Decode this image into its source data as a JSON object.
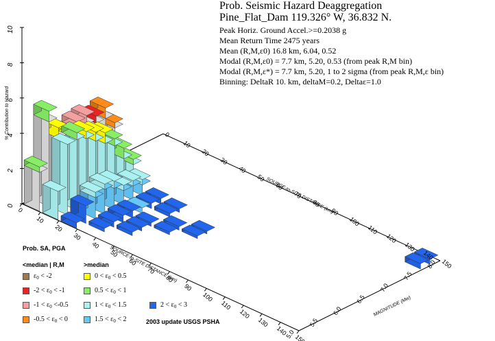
{
  "header": {
    "title": "Prob. Seismic Hazard Deaggregation",
    "site": "Pine_Flat_Dam  119.326° W, 36.832 N.",
    "lines": [
      "Peak Horiz. Ground Accel.>=0.2038  g",
      "Mean Return Time 2475 years",
      "Mean (R,M,ε0)  16.8 km, 6.04,  0.52",
      "Modal (R,M,ε0) =   7.7 km, 5.20,  0.53 (from peak R,M bin)",
      "Modal (R,M,ε*) =  7.7 km, 5.20, 1 to 2 sigma  (from peak R,M,ε bin)",
      "Binning: DeltaR 10. km, deltaM=0.2, Deltaε=1.0"
    ]
  },
  "legend": {
    "title": "Prob. SA, PGA",
    "col1_header": "<median | R,M",
    "col2_header": ">median",
    "items": [
      {
        "label": "ε0 < -2",
        "color": "#a07850"
      },
      {
        "label": "-2 < ε0 < -1",
        "color": "#ee2222"
      },
      {
        "label": "-1 < ε0 <-0.5",
        "color": "#f4a0a0"
      },
      {
        "label": "-0.5 < ε0 < 0",
        "color": "#ff8c1a"
      },
      {
        "label": "0 < ε0 < 0.5",
        "color": "#ffff00"
      },
      {
        "label": "0.5 < ε0 < 1",
        "color": "#88ee66"
      },
      {
        "label": "1 < ε0 < 1.5",
        "color": "#aaf2f2"
      },
      {
        "label": "1.5 < ε0 < 2",
        "color": "#66c8f8"
      },
      {
        "label": "2 < ε0 < 3",
        "color": "#2266ee"
      }
    ],
    "update_note": "2003 update USGS PSHA"
  },
  "chart_data": {
    "type": "bar3d",
    "zlabel": "% Contribution to Hazard",
    "zlim": [
      0,
      10
    ],
    "z_ticks": [
      "0",
      "2",
      "4",
      "6",
      "8",
      "10"
    ],
    "xlabel_front": "SOURCE-to-SITE DISTANCE (km)",
    "xlabel_back": "SOURCE-to-SITE DISTANCE (km)",
    "x_ticks": [
      "0",
      "10",
      "20",
      "30",
      "40",
      "50",
      "60",
      "70",
      "80",
      "90",
      "100",
      "110",
      "120",
      "130",
      "140",
      "150"
    ],
    "ylabel": "MAGNITUDE (Mw)",
    "y_ticks": [
      "5.0",
      "5.5",
      "6.0",
      "6.5",
      "7.0",
      "7.5",
      "8.0"
    ],
    "colors": {
      "e_neg2": "#a07850",
      "e_neg1": "#ee2222",
      "e_neg05": "#f4a0a0",
      "e_neg0": "#ff8c1a",
      "e_05": "#ffff00",
      "e_1": "#88ee66",
      "e_15": "#aaf2f2",
      "e_2": "#66c8f8",
      "e_3": "#2266ee",
      "base": "#dddddd"
    },
    "bars": [
      {
        "r": 5,
        "m": 5.1,
        "stack": [
          {
            "c": "base",
            "v": 2.2
          },
          {
            "c": "e_1",
            "v": 0.3
          }
        ]
      },
      {
        "r": 5,
        "m": 5.3,
        "stack": [
          {
            "c": "base",
            "v": 4.8
          },
          {
            "c": "e_1",
            "v": 0.6
          }
        ]
      },
      {
        "r": 5,
        "m": 5.5,
        "stack": [
          {
            "c": "base",
            "v": 3.6
          },
          {
            "c": "e_05",
            "v": 0.6
          }
        ]
      },
      {
        "r": 5,
        "m": 5.7,
        "stack": [
          {
            "c": "base",
            "v": 3.2
          },
          {
            "c": "e_05",
            "v": 0.5
          }
        ]
      },
      {
        "r": 5,
        "m": 5.9,
        "stack": [
          {
            "c": "base",
            "v": 3.6
          },
          {
            "c": "e_neg05",
            "v": 0.4
          }
        ]
      },
      {
        "r": 5,
        "m": 6.1,
        "stack": [
          {
            "c": "base",
            "v": 3.6
          },
          {
            "c": "e_neg05",
            "v": 0.5
          }
        ]
      },
      {
        "r": 5,
        "m": 6.3,
        "stack": [
          {
            "c": "base",
            "v": 3.4
          },
          {
            "c": "e_neg1",
            "v": 0.4
          }
        ]
      },
      {
        "r": 5,
        "m": 6.5,
        "stack": [
          {
            "c": "base",
            "v": 3.4
          },
          {
            "c": "e_neg0",
            "v": 0.6
          }
        ]
      },
      {
        "r": 5,
        "m": 6.7,
        "stack": [
          {
            "c": "base",
            "v": 2.6
          },
          {
            "c": "e_neg0",
            "v": 0.3
          }
        ]
      },
      {
        "r": 15,
        "m": 5.1,
        "stack": [
          {
            "c": "e_15",
            "v": 1.6
          }
        ]
      },
      {
        "r": 15,
        "m": 5.3,
        "stack": [
          {
            "c": "e_15",
            "v": 4.0
          }
        ]
      },
      {
        "r": 15,
        "m": 5.5,
        "stack": [
          {
            "c": "e_15",
            "v": 4.0
          },
          {
            "c": "e_1",
            "v": 0.4
          }
        ]
      },
      {
        "r": 15,
        "m": 5.7,
        "stack": [
          {
            "c": "e_15",
            "v": 3.8
          },
          {
            "c": "e_05",
            "v": 0.4
          }
        ]
      },
      {
        "r": 15,
        "m": 5.9,
        "stack": [
          {
            "c": "e_15",
            "v": 3.4
          },
          {
            "c": "e_05",
            "v": 0.5
          }
        ]
      },
      {
        "r": 15,
        "m": 6.1,
        "stack": [
          {
            "c": "e_15",
            "v": 3.0
          },
          {
            "c": "e_05",
            "v": 0.6
          }
        ]
      },
      {
        "r": 15,
        "m": 6.3,
        "stack": [
          {
            "c": "e_15",
            "v": 2.6
          },
          {
            "c": "e_1",
            "v": 0.4
          }
        ]
      },
      {
        "r": 15,
        "m": 6.5,
        "stack": [
          {
            "c": "e_15",
            "v": 1.6
          },
          {
            "c": "e_1",
            "v": 0.6
          }
        ]
      },
      {
        "r": 15,
        "m": 6.7,
        "stack": [
          {
            "c": "e_15",
            "v": 1.0
          },
          {
            "c": "e_1",
            "v": 0.3
          }
        ]
      },
      {
        "r": 25,
        "m": 5.1,
        "stack": [
          {
            "c": "e_3",
            "v": 0.3
          }
        ]
      },
      {
        "r": 25,
        "m": 5.3,
        "stack": [
          {
            "c": "e_3",
            "v": 1.0
          }
        ]
      },
      {
        "r": 25,
        "m": 5.5,
        "stack": [
          {
            "c": "e_2",
            "v": 1.2
          },
          {
            "c": "e_15",
            "v": 0.3
          }
        ]
      },
      {
        "r": 25,
        "m": 5.7,
        "stack": [
          {
            "c": "e_2",
            "v": 1.4
          },
          {
            "c": "e_15",
            "v": 0.3
          }
        ]
      },
      {
        "r": 25,
        "m": 5.9,
        "stack": [
          {
            "c": "e_2",
            "v": 1.2
          },
          {
            "c": "e_15",
            "v": 0.4
          }
        ]
      },
      {
        "r": 25,
        "m": 6.1,
        "stack": [
          {
            "c": "e_2",
            "v": 0.8
          },
          {
            "c": "e_15",
            "v": 0.3
          }
        ]
      },
      {
        "r": 25,
        "m": 6.3,
        "stack": [
          {
            "c": "e_2",
            "v": 0.8
          },
          {
            "c": "e_15",
            "v": 0.3
          }
        ]
      },
      {
        "r": 25,
        "m": 6.5,
        "stack": [
          {
            "c": "e_2",
            "v": 0.6
          },
          {
            "c": "e_15",
            "v": 0.3
          }
        ]
      },
      {
        "r": 35,
        "m": 5.3,
        "stack": [
          {
            "c": "e_3",
            "v": 0.2
          }
        ]
      },
      {
        "r": 35,
        "m": 5.5,
        "stack": [
          {
            "c": "e_3",
            "v": 0.3
          }
        ]
      },
      {
        "r": 35,
        "m": 5.7,
        "stack": [
          {
            "c": "e_3",
            "v": 0.4
          }
        ]
      },
      {
        "r": 35,
        "m": 5.9,
        "stack": [
          {
            "c": "e_3",
            "v": 0.4
          }
        ]
      },
      {
        "r": 35,
        "m": 6.1,
        "stack": [
          {
            "c": "e_2",
            "v": 0.3
          }
        ]
      },
      {
        "r": 35,
        "m": 6.3,
        "stack": [
          {
            "c": "e_3",
            "v": 0.3
          }
        ]
      },
      {
        "r": 35,
        "m": 6.5,
        "stack": [
          {
            "c": "e_3",
            "v": 0.3
          }
        ]
      },
      {
        "r": 45,
        "m": 5.5,
        "stack": [
          {
            "c": "e_3",
            "v": 0.2
          }
        ]
      },
      {
        "r": 45,
        "m": 5.7,
        "stack": [
          {
            "c": "e_3",
            "v": 0.2
          }
        ]
      },
      {
        "r": 45,
        "m": 5.9,
        "stack": [
          {
            "c": "e_3",
            "v": 0.2
          }
        ]
      },
      {
        "r": 45,
        "m": 6.3,
        "stack": [
          {
            "c": "e_3",
            "v": 0.2
          }
        ]
      },
      {
        "r": 45,
        "m": 6.5,
        "stack": [
          {
            "c": "e_3",
            "v": 0.2
          }
        ]
      },
      {
        "r": 55,
        "m": 5.9,
        "stack": [
          {
            "c": "e_3",
            "v": 0.15
          }
        ]
      },
      {
        "r": 55,
        "m": 6.1,
        "stack": [
          {
            "c": "e_3",
            "v": 0.2
          }
        ]
      },
      {
        "r": 65,
        "m": 6.1,
        "stack": [
          {
            "c": "e_3",
            "v": 0.15
          }
        ]
      },
      {
        "r": 65,
        "m": 6.3,
        "stack": [
          {
            "c": "e_3",
            "v": 0.15
          }
        ]
      },
      {
        "r": 145,
        "m": 7.7,
        "stack": [
          {
            "c": "e_3",
            "v": 0.3
          }
        ]
      },
      {
        "r": 145,
        "m": 7.9,
        "stack": [
          {
            "c": "e_3",
            "v": 0.3
          }
        ]
      }
    ]
  }
}
